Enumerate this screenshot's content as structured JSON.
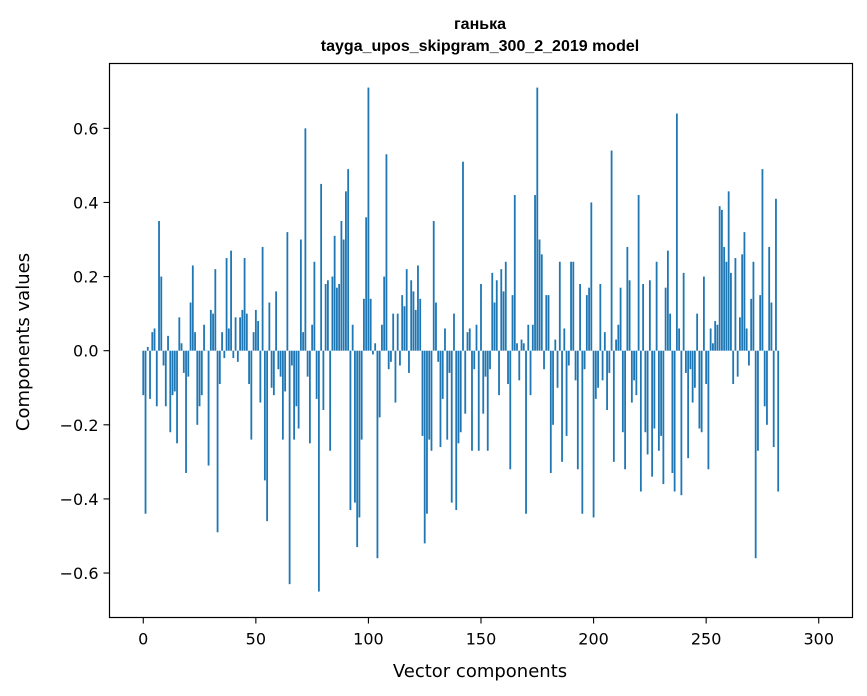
{
  "chart_data": {
    "type": "bar",
    "title": "ганька",
    "subtitle": "tayga_upos_skipgram_300_2_2019 model",
    "xlabel": "Vector components",
    "ylabel": "Components values",
    "xlim": [
      -15,
      315
    ],
    "ylim": [
      -0.72,
      0.775
    ],
    "x_ticks": [
      0,
      50,
      100,
      150,
      200,
      250,
      300
    ],
    "y_ticks": [
      -0.6,
      -0.4,
      -0.2,
      0.0,
      0.2,
      0.4,
      0.6
    ],
    "y_tick_labels": [
      "−0.6",
      "−0.4",
      "−0.2",
      "0.0",
      "0.2",
      "0.4",
      "0.6"
    ],
    "x_tick_labels": [
      "0",
      "50",
      "100",
      "150",
      "200",
      "250",
      "300"
    ],
    "bar_color": "#1f77b4",
    "values": [
      -0.12,
      -0.44,
      0.01,
      -0.13,
      0.05,
      0.06,
      -0.15,
      0.35,
      0.2,
      -0.04,
      -0.15,
      0.04,
      -0.22,
      -0.12,
      -0.11,
      -0.25,
      0.09,
      0.02,
      -0.06,
      -0.33,
      -0.07,
      0.13,
      0.23,
      0.05,
      -0.2,
      -0.15,
      -0.12,
      0.07,
      0.0,
      -0.31,
      0.11,
      0.1,
      0.22,
      -0.49,
      -0.09,
      0.05,
      -0.02,
      0.25,
      0.06,
      0.27,
      -0.02,
      0.09,
      -0.03,
      0.09,
      0.11,
      0.25,
      0.1,
      -0.09,
      -0.24,
      0.05,
      0.11,
      0.08,
      -0.14,
      0.28,
      -0.35,
      -0.46,
      0.13,
      -0.1,
      -0.12,
      0.16,
      -0.05,
      -0.07,
      -0.24,
      -0.11,
      0.32,
      -0.63,
      -0.04,
      -0.24,
      -0.15,
      -0.21,
      0.3,
      0.05,
      0.6,
      -0.07,
      -0.25,
      0.07,
      0.24,
      -0.13,
      -0.65,
      0.45,
      -0.16,
      0.18,
      0.19,
      -0.27,
      0.2,
      0.31,
      0.17,
      0.18,
      0.35,
      0.3,
      0.43,
      0.49,
      -0.43,
      0.07,
      -0.41,
      -0.53,
      -0.45,
      -0.24,
      0.14,
      0.36,
      0.71,
      0.14,
      -0.01,
      0.02,
      -0.56,
      -0.18,
      0.07,
      0.2,
      0.53,
      -0.05,
      -0.03,
      0.1,
      -0.14,
      0.1,
      -0.04,
      0.15,
      0.12,
      0.22,
      -0.06,
      0.19,
      0.16,
      0.11,
      0.23,
      0.14,
      -0.23,
      -0.52,
      -0.44,
      -0.24,
      -0.27,
      0.35,
      0.13,
      -0.03,
      -0.26,
      -0.13,
      0.06,
      -0.24,
      -0.06,
      -0.41,
      0.1,
      -0.43,
      -0.25,
      -0.22,
      0.51,
      -0.17,
      0.05,
      0.06,
      -0.27,
      -0.05,
      0.07,
      -0.27,
      0.18,
      -0.17,
      -0.07,
      -0.27,
      -0.05,
      0.21,
      0.13,
      0.19,
      -0.12,
      0.22,
      0.16,
      0.24,
      -0.09,
      -0.32,
      0.15,
      0.42,
      0.02,
      -0.08,
      0.03,
      0.02,
      -0.44,
      0.07,
      -0.12,
      0.07,
      0.42,
      0.71,
      0.3,
      0.26,
      -0.05,
      0.15,
      0.15,
      -0.33,
      -0.2,
      0.03,
      -0.1,
      0.24,
      -0.3,
      0.06,
      -0.23,
      -0.04,
      0.24,
      0.24,
      -0.08,
      -0.32,
      0.18,
      -0.44,
      -0.05,
      0.15,
      0.17,
      0.4,
      -0.45,
      -0.13,
      -0.1,
      0.18,
      -0.08,
      0.05,
      -0.16,
      -0.06,
      0.54,
      -0.3,
      0.03,
      0.07,
      0.17,
      -0.22,
      -0.32,
      0.28,
      0.19,
      -0.14,
      -0.08,
      -0.12,
      0.42,
      -0.38,
      0.18,
      -0.22,
      -0.28,
      0.19,
      -0.34,
      -0.21,
      0.24,
      -0.27,
      -0.23,
      -0.36,
      0.17,
      0.27,
      0.1,
      -0.33,
      -0.38,
      0.64,
      0.06,
      -0.39,
      0.21,
      -0.06,
      -0.29,
      -0.05,
      -0.14,
      -0.1,
      0.1,
      -0.21,
      -0.22,
      0.2,
      -0.09,
      -0.32,
      0.06,
      0.02,
      0.08,
      0.07,
      0.39,
      0.38,
      0.28,
      0.24,
      0.43,
      0.21,
      -0.09,
      0.25,
      -0.07,
      0.09,
      0.26,
      0.32,
      0.06,
      -0.04,
      0.14,
      0.24,
      -0.56,
      -0.27,
      0.15,
      0.49,
      -0.15,
      -0.2,
      0.28,
      0.13,
      -0.26,
      0.41,
      -0.38
    ],
    "legend": ""
  }
}
